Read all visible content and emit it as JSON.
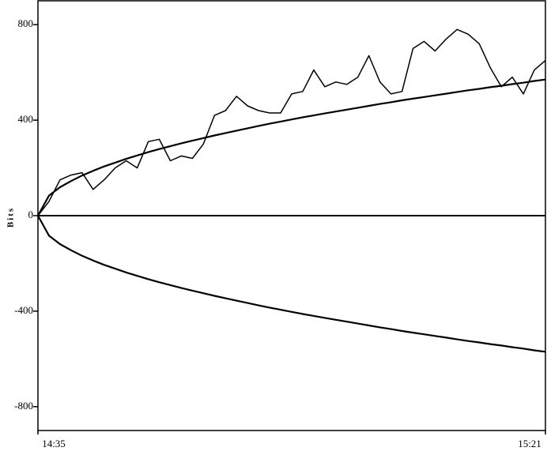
{
  "chart_data": {
    "type": "line",
    "y_label": "Bits",
    "x": [
      0,
      1,
      2,
      3,
      4,
      5,
      6,
      7,
      8,
      9,
      10,
      11,
      12,
      13,
      14,
      15,
      16,
      17,
      18,
      19,
      20,
      21,
      22,
      23,
      24,
      25,
      26,
      27,
      28,
      29,
      30,
      31,
      32,
      33,
      34,
      35,
      36,
      37,
      38,
      39,
      40,
      41,
      42,
      43,
      44,
      45,
      46
    ],
    "series": [
      {
        "color": "#000000",
        "values": [
          0,
          60,
          150,
          170,
          180,
          110,
          150,
          200,
          230,
          200,
          310,
          320,
          230,
          250,
          240,
          300,
          420,
          440,
          500,
          460,
          440,
          430,
          430,
          510,
          520,
          610,
          540,
          560,
          550,
          580,
          670,
          560,
          510,
          520,
          700,
          730,
          690,
          740,
          780,
          760,
          720,
          620,
          540,
          580,
          510,
          610,
          650
        ]
      },
      {
        "color": "#000000",
        "values": [
          0,
          84,
          119,
          145,
          168,
          188,
          206,
          222,
          238,
          252,
          266,
          279,
          291,
          303,
          314,
          325,
          336,
          346,
          356,
          366,
          376,
          385,
          394,
          403,
          412,
          420,
          428,
          436,
          444,
          452,
          460,
          468,
          475,
          483,
          490,
          497,
          504,
          511,
          518,
          525,
          531,
          538,
          544,
          551,
          557,
          564,
          570
        ]
      },
      {
        "color": "#000000",
        "values": [
          0,
          -84,
          -119,
          -145,
          -168,
          -188,
          -206,
          -222,
          -238,
          -252,
          -266,
          -279,
          -291,
          -303,
          -314,
          -325,
          -336,
          -346,
          -356,
          -366,
          -376,
          -385,
          -394,
          -403,
          -412,
          -420,
          -428,
          -436,
          -444,
          -452,
          -460,
          -468,
          -475,
          -483,
          -490,
          -497,
          -504,
          -511,
          -518,
          -525,
          -531,
          -538,
          -544,
          -551,
          -557,
          -564,
          -570
        ]
      }
    ],
    "xlim": [
      0,
      46
    ],
    "xticks": [
      {
        "value": 0,
        "label": "14:35"
      },
      {
        "value": 46,
        "label": "15:21"
      }
    ],
    "ylim": [
      -900,
      900
    ],
    "yticks": [
      800,
      400,
      0,
      -400,
      -800
    ]
  }
}
